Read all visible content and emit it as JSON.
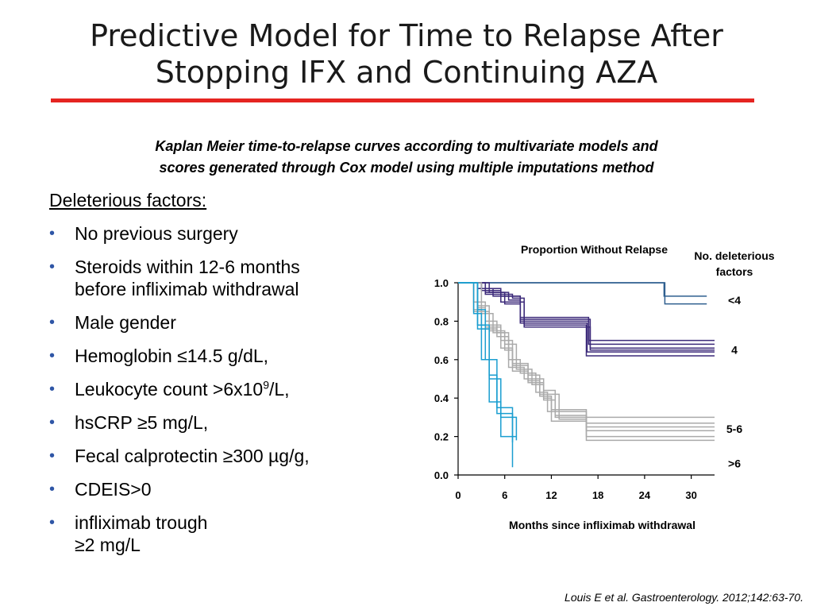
{
  "slide": {
    "title_lines": [
      "Predictive Model for Time to Relapse After",
      "Stopping IFX and Continuing AZA"
    ],
    "subtitle_lines": [
      "Kaplan Meier time-to-relapse curves according to multivariate models and",
      "scores generated through Cox model using multiple imputations method"
    ],
    "accent_color": "#e52421",
    "bullet_color": "#2f56a6",
    "citation": "Louis E et al. Gastroenterology. 2012;142:63-70."
  },
  "factors": {
    "heading": "Deleterious factors:",
    "items": [
      {
        "parts": [
          "No previous surgery"
        ]
      },
      {
        "parts": [
          "Steroids within 12-6 months",
          "before infliximab withdrawal"
        ]
      },
      {
        "parts": [
          "Male gender"
        ]
      },
      {
        "parts": [
          "Hemoglobin ≤14.5 g/dL,"
        ]
      },
      {
        "parts": [
          "Leukocyte count >6x10",
          "9",
          "/L,"
        ],
        "sup": true
      },
      {
        "parts": [
          "hsCRP ≥5 mg/L,"
        ]
      },
      {
        "parts": [
          "Fecal calprotectin ≥300 µg/g,"
        ]
      },
      {
        "parts": [
          "CDEIS>0"
        ]
      },
      {
        "parts": [
          "infliximab trough",
          "≥2 mg/L"
        ]
      }
    ]
  },
  "chart_data": {
    "type": "line",
    "step": true,
    "title": "Proportion Without Relapse",
    "xlabel": "Months since infliximab withdrawal",
    "ylabel": "Proportion Without Relapse",
    "legend_title": [
      "No. deleterious",
      "factors"
    ],
    "xlim": [
      0,
      33
    ],
    "ylim": [
      0,
      1.0
    ],
    "x_ticks": [
      0,
      6,
      12,
      18,
      24,
      30
    ],
    "y_ticks": [
      {
        "value": 0.0,
        "label": "0.0"
      },
      {
        "value": 0.2,
        "label": "0.2"
      },
      {
        "value": 0.4,
        "label": "0.4"
      },
      {
        "value": 0.6,
        "label": "0.6"
      },
      {
        "value": 0.8,
        "label": "0.8"
      },
      {
        "value": 1.0,
        "label": "1.0"
      }
    ],
    "groups": [
      {
        "label": "<4",
        "color": "#2f5f8f",
        "label_value": 0.91,
        "series": [
          {
            "x": [
              0,
              7.5,
              26.5,
              32
            ],
            "y": [
              1.0,
              1.0,
              0.93,
              0.93
            ]
          },
          {
            "x": [
              0,
              26.5,
              26.6,
              32
            ],
            "y": [
              1.0,
              1.0,
              0.89,
              0.89
            ]
          }
        ]
      },
      {
        "label": "4",
        "color": "#3c2a7a",
        "label_value": 0.65,
        "series": [
          {
            "x": [
              0,
              2.5,
              4.5,
              8.0,
              16.8,
              33
            ],
            "y": [
              1.0,
              0.97,
              0.93,
              0.8,
              0.7,
              0.7
            ]
          },
          {
            "x": [
              0,
              3.0,
              5.5,
              8.0,
              16.8,
              33
            ],
            "y": [
              1.0,
              0.96,
              0.93,
              0.82,
              0.68,
              0.68
            ]
          },
          {
            "x": [
              0,
              3.5,
              6.5,
              8.0,
              16.6,
              33
            ],
            "y": [
              1.0,
              0.95,
              0.91,
              0.79,
              0.64,
              0.64
            ]
          },
          {
            "x": [
              0,
              3.0,
              5.5,
              8.5,
              17.0,
              33
            ],
            "y": [
              1.0,
              0.97,
              0.9,
              0.77,
              0.65,
              0.65
            ]
          },
          {
            "x": [
              0,
              3.5,
              7.0,
              8.5,
              16.5,
              33
            ],
            "y": [
              1.0,
              0.94,
              0.92,
              0.78,
              0.62,
              0.62
            ]
          },
          {
            "x": [
              0,
              4.0,
              6.0,
              8.0,
              17.0,
              33
            ],
            "y": [
              1.0,
              0.95,
              0.89,
              0.81,
              0.66,
              0.66
            ]
          }
        ]
      },
      {
        "label": "5-6",
        "color": "#aaaaaa",
        "label_value": 0.24,
        "series": [
          {
            "x": [
              0,
              2.0,
              3.5,
              5.0,
              6.5,
              8.0,
              10.0,
              11.5,
              16.5,
              33
            ],
            "y": [
              1.0,
              0.9,
              0.8,
              0.74,
              0.6,
              0.53,
              0.43,
              0.33,
              0.3,
              0.3
            ]
          },
          {
            "x": [
              0,
              2.5,
              4.0,
              5.5,
              7.0,
              9.0,
              10.5,
              12.0,
              16.5,
              33
            ],
            "y": [
              1.0,
              0.88,
              0.78,
              0.7,
              0.58,
              0.52,
              0.41,
              0.34,
              0.27,
              0.27
            ]
          },
          {
            "x": [
              0,
              2.0,
              3.0,
              5.0,
              6.5,
              8.5,
              11.0,
              12.5,
              16.5,
              33
            ],
            "y": [
              1.0,
              0.86,
              0.76,
              0.72,
              0.56,
              0.5,
              0.44,
              0.31,
              0.25,
              0.25
            ]
          },
          {
            "x": [
              0,
              3.0,
              4.5,
              6.0,
              7.5,
              9.5,
              11.0,
              12.5,
              16.5,
              33
            ],
            "y": [
              1.0,
              0.84,
              0.74,
              0.68,
              0.55,
              0.47,
              0.39,
              0.3,
              0.23,
              0.23
            ]
          },
          {
            "x": [
              0,
              2.5,
              3.5,
              5.5,
              7.0,
              9.0,
              10.5,
              13.0,
              16.5,
              33
            ],
            "y": [
              1.0,
              0.87,
              0.77,
              0.66,
              0.54,
              0.49,
              0.42,
              0.29,
              0.2,
              0.2
            ]
          },
          {
            "x": [
              0,
              2.0,
              4.0,
              6.0,
              7.0,
              9.0,
              11.0,
              12.0,
              16.5,
              33
            ],
            "y": [
              1.0,
              0.85,
              0.75,
              0.65,
              0.57,
              0.48,
              0.4,
              0.28,
              0.18,
              0.18
            ]
          }
        ]
      },
      {
        "label": ">6",
        "color": "#1a9ed0",
        "label_value": 0.06,
        "series": [
          {
            "x": [
              0,
              2.0,
              3.0,
              4.0,
              5.5,
              7.5
            ],
            "y": [
              1.0,
              0.84,
              0.6,
              0.38,
              0.2,
              0.2
            ]
          },
          {
            "x": [
              0,
              2.5,
              3.5,
              5.0,
              7.0
            ],
            "y": [
              1.0,
              0.86,
              0.6,
              0.35,
              0.17
            ]
          },
          {
            "x": [
              0,
              2.5,
              4.0,
              5.5,
              7.5
            ],
            "y": [
              1.0,
              0.78,
              0.5,
              0.3,
              0.18
            ]
          },
          {
            "x": [
              0,
              2.5,
              4.0,
              5.0,
              7.0
            ],
            "y": [
              1.0,
              0.76,
              0.52,
              0.32,
              0.04
            ]
          }
        ]
      }
    ]
  }
}
